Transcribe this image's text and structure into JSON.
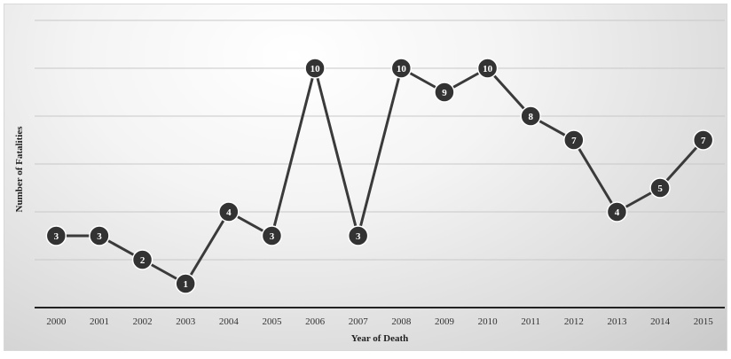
{
  "chart_data": {
    "type": "line",
    "title": "",
    "xlabel": "Year of Death",
    "ylabel": "Number of Fatalities",
    "x": [
      "2000",
      "2001",
      "2002",
      "2003",
      "2004",
      "2005",
      "2006",
      "2007",
      "2008",
      "2009",
      "2010",
      "2011",
      "2012",
      "2013",
      "2014",
      "2015"
    ],
    "values": [
      3,
      3,
      2,
      1,
      4,
      3,
      10,
      3,
      10,
      9,
      10,
      8,
      7,
      4,
      5,
      7
    ],
    "ylim": [
      0,
      12
    ],
    "grid": true,
    "legend": "none",
    "colors": {
      "line": "#3a3a3a",
      "marker": "#333333",
      "marker_text": "#ffffff",
      "grid": "#c8c8c8",
      "axis": "#222222"
    }
  }
}
